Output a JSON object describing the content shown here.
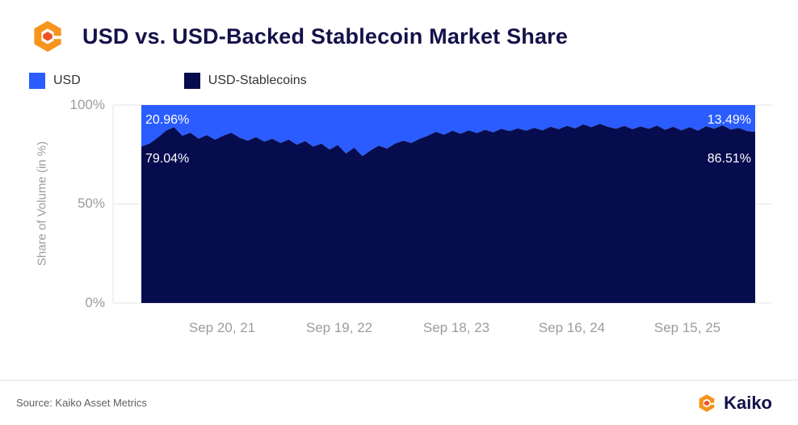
{
  "header": {
    "title": "USD vs. USD-Backed Stablecoin Market Share"
  },
  "legend": [
    {
      "label": "USD",
      "color": "#2A5CFF"
    },
    {
      "label": "USD-Stablecoins",
      "color": "#070C4E"
    }
  ],
  "chart_data": {
    "type": "area",
    "stacked": true,
    "title": "USD vs. USD-Backed Stablecoin Market Share",
    "ylabel": "Share of Volume (in %)",
    "xlabel": "",
    "ylim": [
      0,
      100
    ],
    "grid": true,
    "legend_position": "top",
    "yticks": [
      "100%",
      "50%",
      "0%"
    ],
    "ytick_values": [
      100,
      50,
      0
    ],
    "xticks": [
      "Sep 20, 21",
      "Sep 19, 22",
      "Sep 18, 23",
      "Sep 16, 24",
      "Sep 15, 25"
    ],
    "series": [
      {
        "name": "USD-Stablecoins",
        "color": "#070C4E",
        "values": [
          79.04,
          80.5,
          83.5,
          87.0,
          88.8,
          84.5,
          86.0,
          83.0,
          84.8,
          82.5,
          84.5,
          86.0,
          83.5,
          82.0,
          83.8,
          81.5,
          83.0,
          80.8,
          82.5,
          80.0,
          81.8,
          79.0,
          80.5,
          77.5,
          79.8,
          75.5,
          78.5,
          74.2,
          77.0,
          79.5,
          78.0,
          80.5,
          82.0,
          80.8,
          83.0,
          84.5,
          86.5,
          85.0,
          87.0,
          85.5,
          87.2,
          85.8,
          87.5,
          86.2,
          88.0,
          86.8,
          88.2,
          87.0,
          88.5,
          87.2,
          89.0,
          87.8,
          89.5,
          88.2,
          90.2,
          88.8,
          90.5,
          89.0,
          88.0,
          89.5,
          87.8,
          89.2,
          88.0,
          89.6,
          87.5,
          89.0,
          87.2,
          88.8,
          87.0,
          89.3,
          88.0,
          89.8,
          87.6,
          88.4,
          86.8,
          86.51
        ]
      },
      {
        "name": "USD",
        "color": "#2A5CFF",
        "derivation": "remainder to 100%",
        "start_value": 20.96,
        "end_value": 13.49
      }
    ],
    "annotations": [
      {
        "text": "20.96%",
        "series": "USD",
        "position": "start"
      },
      {
        "text": "79.04%",
        "series": "USD-Stablecoins",
        "position": "start"
      },
      {
        "text": "13.49%",
        "series": "USD",
        "position": "end"
      },
      {
        "text": "86.51%",
        "series": "USD-Stablecoins",
        "position": "end"
      }
    ]
  },
  "footer": {
    "source": "Source: Kaiko Asset Metrics",
    "brand": "Kaiko"
  }
}
